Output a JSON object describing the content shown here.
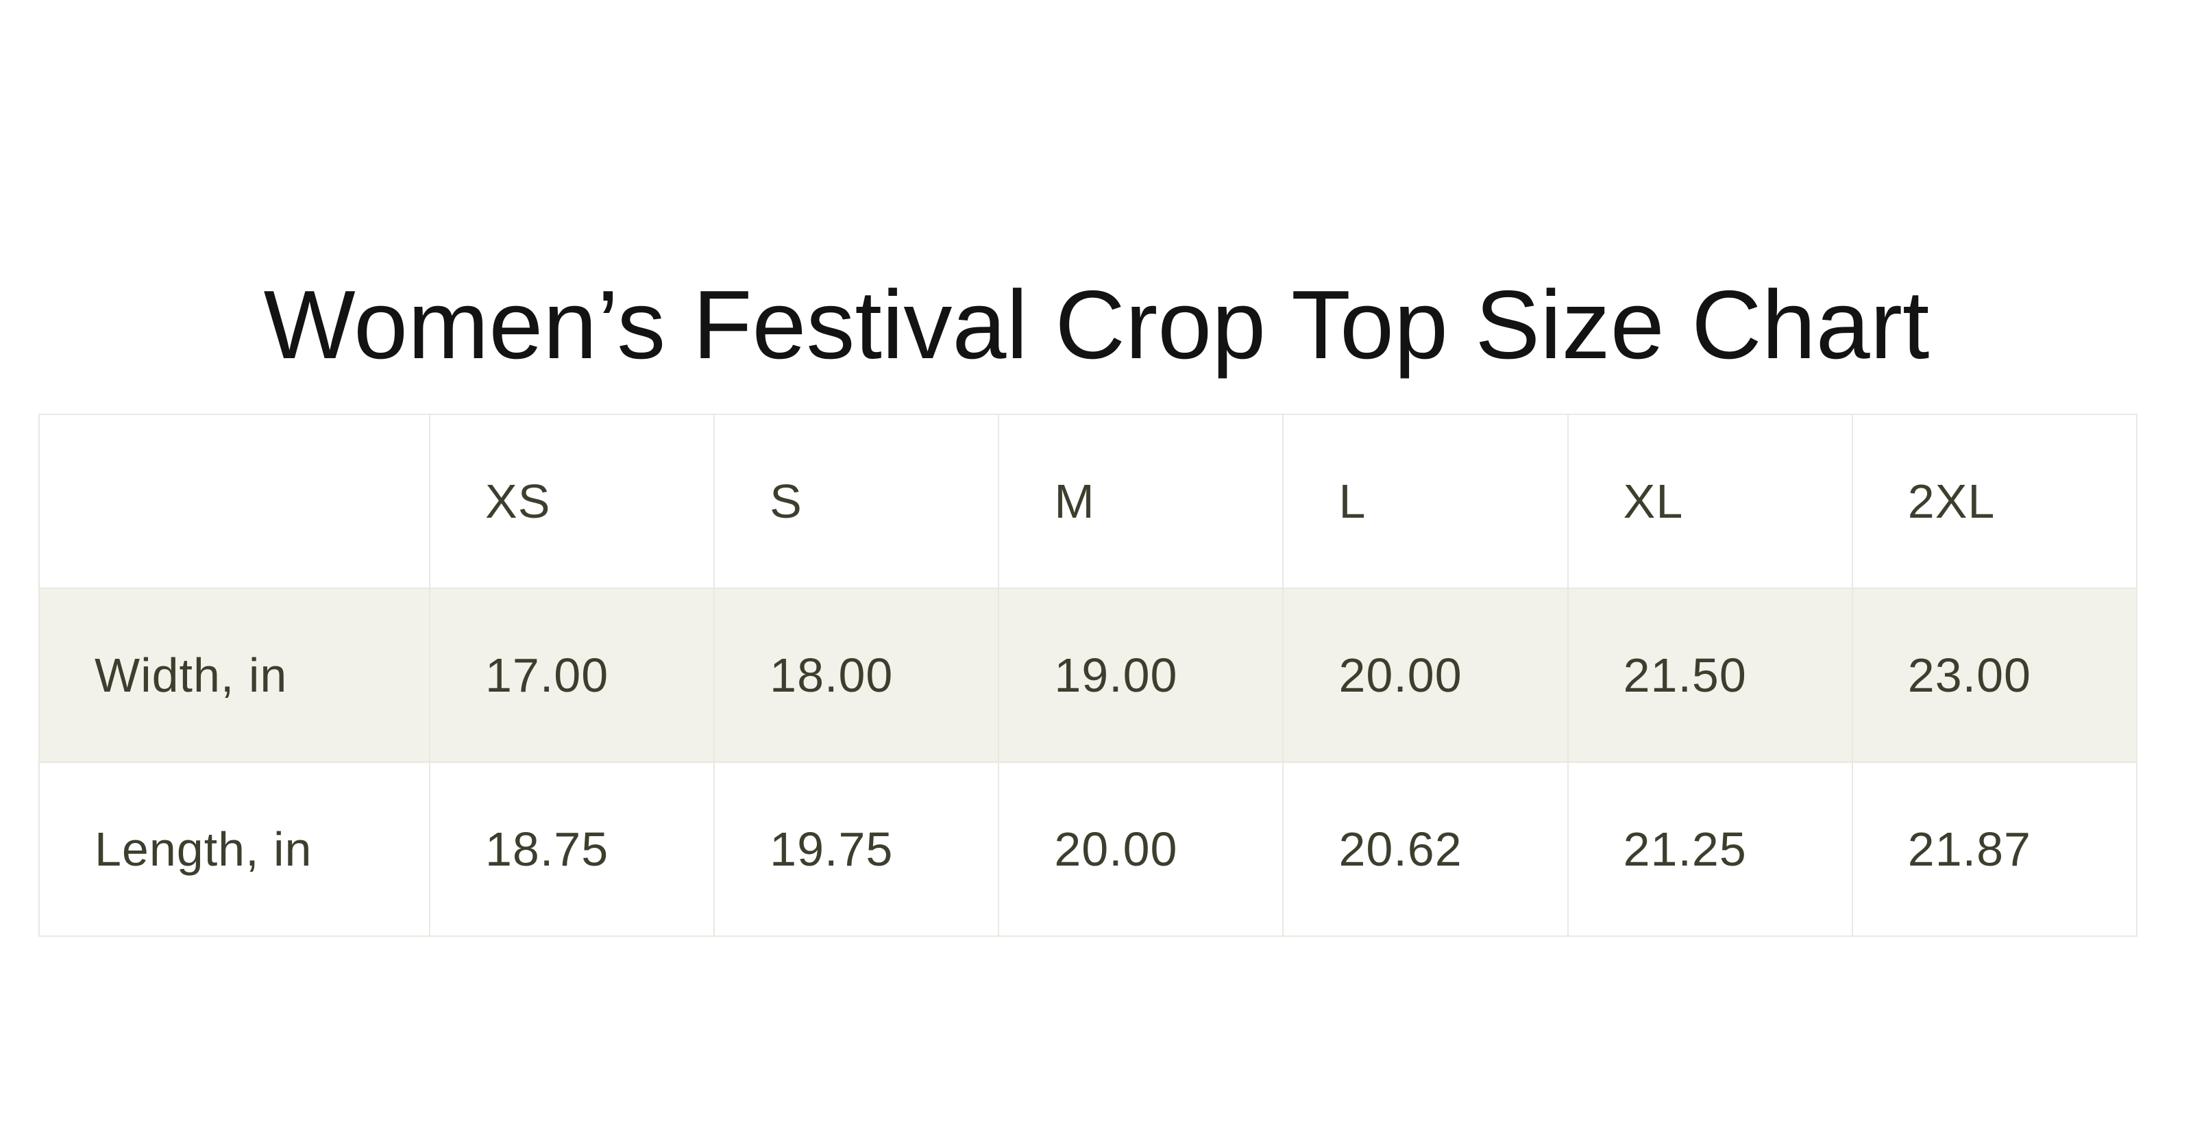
{
  "title": "Women’s Festival Crop Top Size Chart",
  "table": {
    "columns": [
      "",
      "XS",
      "S",
      "M",
      "L",
      "XL",
      "2XL"
    ],
    "rows": [
      {
        "label": "Width, in",
        "values": [
          "17.00",
          "18.00",
          "19.00",
          "20.00",
          "21.50",
          "23.00"
        ]
      },
      {
        "label": "Length, in",
        "values": [
          "18.75",
          "19.75",
          "20.00",
          "20.62",
          "21.25",
          "21.87"
        ]
      }
    ]
  },
  "chart_data": {
    "type": "table",
    "title": "Women’s Festival Crop Top Size Chart",
    "categories": [
      "XS",
      "S",
      "M",
      "L",
      "XL",
      "2XL"
    ],
    "series": [
      {
        "name": "Width, in",
        "values": [
          17.0,
          18.0,
          19.0,
          20.0,
          21.5,
          23.0
        ]
      },
      {
        "name": "Length, in",
        "values": [
          18.75,
          19.75,
          20.0,
          20.62,
          21.25,
          21.87
        ]
      }
    ],
    "units": "inches",
    "layout": {
      "shaded_rows": [
        "Width, in"
      ],
      "first_column_header": true
    }
  },
  "colors": {
    "page_background": "#ffffff",
    "title_text": "#131313",
    "table_text": "#3e3e2e",
    "shaded_row_background": "#f2f2ea",
    "border": "#e9e9e1"
  }
}
